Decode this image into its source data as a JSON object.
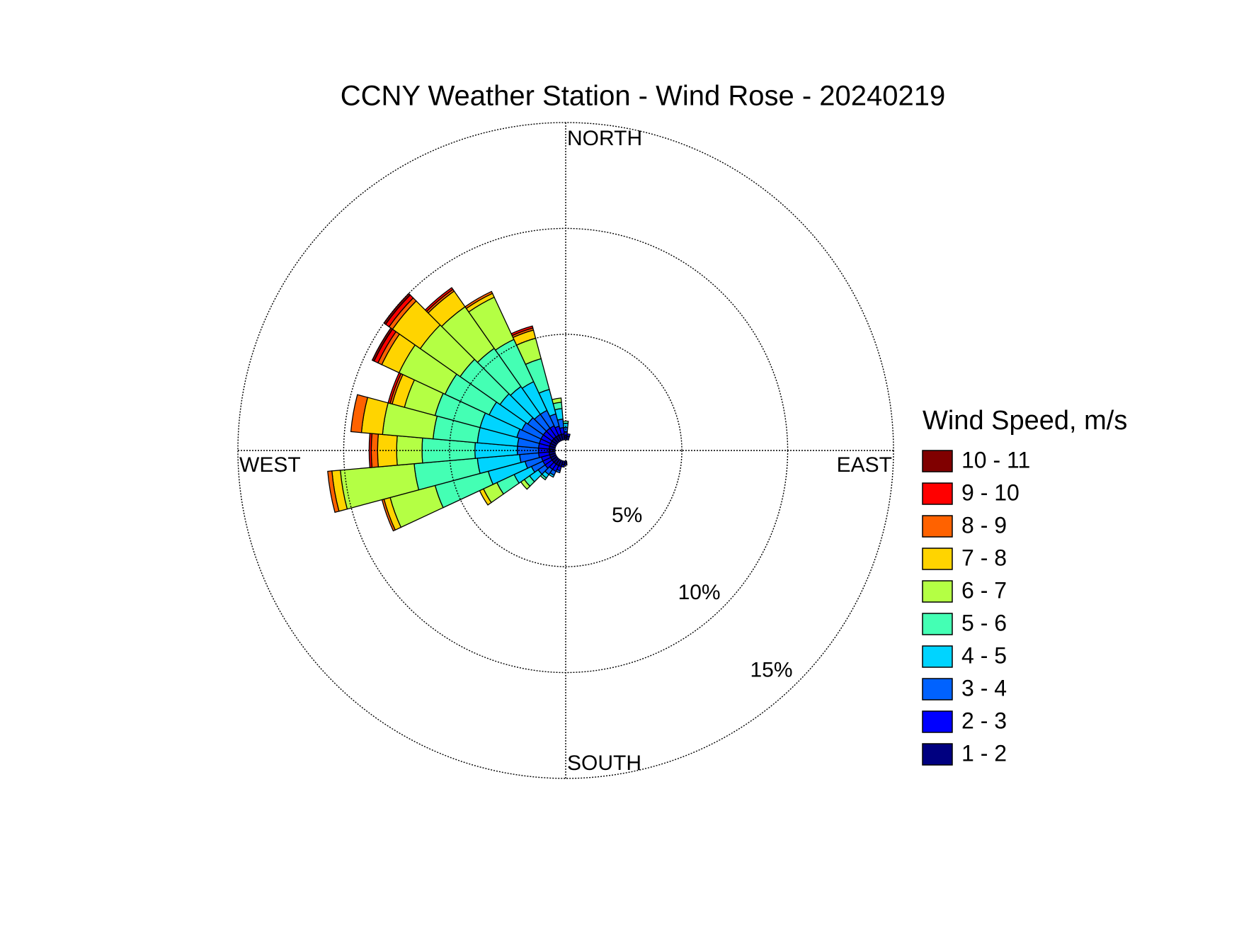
{
  "chart_data": {
    "type": "windrose",
    "title": "CCNY Weather Station - Wind Rose - 20240219",
    "legend_title": "Wind Speed, m/s",
    "direction_labels": {
      "north": "NORTH",
      "east": "EAST",
      "south": "SOUTH",
      "west": "WEST"
    },
    "directions": [
      180,
      190,
      200,
      210,
      220,
      230,
      240,
      250,
      260,
      270,
      280,
      290,
      300,
      310,
      320,
      330,
      340,
      350,
      360,
      10
    ],
    "rlim": [
      0,
      15
    ],
    "rticks": [
      {
        "value": 5,
        "label": "5%"
      },
      {
        "value": 10,
        "label": "10%"
      },
      {
        "value": 15,
        "label": "15%"
      }
    ],
    "series": [
      {
        "name": "1 - 2",
        "color": "#000080",
        "values": [
          0.1,
          0.2,
          0.3,
          0.3,
          0.3,
          0.3,
          0.3,
          0.3,
          0.3,
          0.3,
          0.3,
          0.3,
          0.3,
          0.3,
          0.3,
          0.3,
          0.3,
          0.3,
          0.2,
          0.2
        ]
      },
      {
        "name": "2 - 3",
        "color": "#0000ff",
        "values": [
          0.1,
          0.1,
          0.2,
          0.3,
          0.3,
          0.4,
          0.4,
          0.4,
          0.5,
          0.5,
          0.5,
          0.5,
          0.5,
          0.5,
          0.5,
          0.5,
          0.4,
          0.3,
          0.2,
          0.1
        ]
      },
      {
        "name": "3 - 4",
        "color": "#0062ff",
        "values": [
          0,
          0,
          0.1,
          0.2,
          0.3,
          0.4,
          0.6,
          0.8,
          0.9,
          1.0,
          1.0,
          1.1,
          1.0,
          0.9,
          0.8,
          0.8,
          0.6,
          0.4,
          0.2,
          0
        ]
      },
      {
        "name": "4 - 5",
        "color": "#00d4ff",
        "values": [
          0,
          0,
          0,
          0.1,
          0.2,
          0.5,
          0.9,
          1.8,
          2.0,
          2.0,
          1.9,
          1.8,
          1.7,
          1.6,
          1.6,
          1.5,
          1.2,
          0.5,
          0.2,
          0
        ]
      },
      {
        "name": "5 - 6",
        "color": "#44ffb4",
        "values": [
          0,
          0,
          0,
          0,
          0.1,
          0.3,
          0.9,
          2.6,
          3.0,
          2.5,
          2.1,
          2.2,
          2.3,
          2.3,
          2.2,
          2.2,
          1.5,
          0.3,
          0.1,
          0
        ]
      },
      {
        "name": "6 - 7",
        "color": "#b4ff44",
        "values": [
          0,
          0,
          0,
          0,
          0,
          0.2,
          0.7,
          2.2,
          3.5,
          1.2,
          2.4,
          1.5,
          2.4,
          2.3,
          2.4,
          2.2,
          1.0,
          0.2,
          0,
          0
        ]
      },
      {
        "name": "7 - 8",
        "color": "#ffd400",
        "values": [
          0,
          0,
          0,
          0,
          0,
          0,
          0.2,
          0.3,
          0.4,
          0.9,
          1.0,
          0.6,
          0.9,
          1.6,
          0.9,
          0.2,
          0.4,
          0,
          0,
          0
        ]
      },
      {
        "name": "8 - 9",
        "color": "#ff6200",
        "values": [
          0,
          0,
          0,
          0,
          0,
          0,
          0,
          0.1,
          0.2,
          0.3,
          0.5,
          0.1,
          0.2,
          0.2,
          0.1,
          0.1,
          0.1,
          0,
          0,
          0
        ]
      },
      {
        "name": "9 - 10",
        "color": "#ff0000",
        "values": [
          0,
          0,
          0,
          0,
          0,
          0,
          0,
          0,
          0,
          0.1,
          0,
          0.1,
          0.2,
          0.2,
          0.1,
          0,
          0.1,
          0,
          0,
          0
        ]
      },
      {
        "name": "10 - 11",
        "color": "#800000",
        "values": [
          0,
          0,
          0,
          0,
          0,
          0,
          0,
          0,
          0,
          0,
          0,
          0,
          0.1,
          0.1,
          0,
          0,
          0,
          0,
          0,
          0
        ]
      }
    ]
  }
}
